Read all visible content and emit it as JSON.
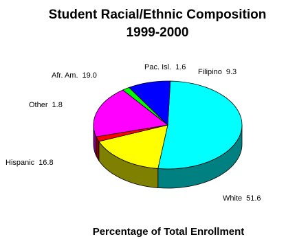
{
  "chart_data": {
    "type": "pie",
    "title": "Student Racial/Ethnic Composition",
    "subtitle": "1999-2000",
    "caption": "Percentage of Total Enrollment",
    "three_d": true,
    "slices": [
      {
        "label": "White",
        "value": 51.6,
        "color": "#00ffff",
        "side_color": "#008080"
      },
      {
        "label": "Hispanic",
        "value": 16.8,
        "color": "#ffff00",
        "side_color": "#808000"
      },
      {
        "label": "Other",
        "value": 1.8,
        "color": "#ff0000",
        "side_color": "#800000"
      },
      {
        "label": "Afr. Am.",
        "value": 19.0,
        "color": "#ff00ff",
        "side_color": "#800080"
      },
      {
        "label": "Pac. Isl.",
        "value": 1.6,
        "color": "#00ff00",
        "side_color": "#008000"
      },
      {
        "label": "Filipino",
        "value": 9.3,
        "color": "#0000ff",
        "side_color": "#000080"
      }
    ]
  }
}
